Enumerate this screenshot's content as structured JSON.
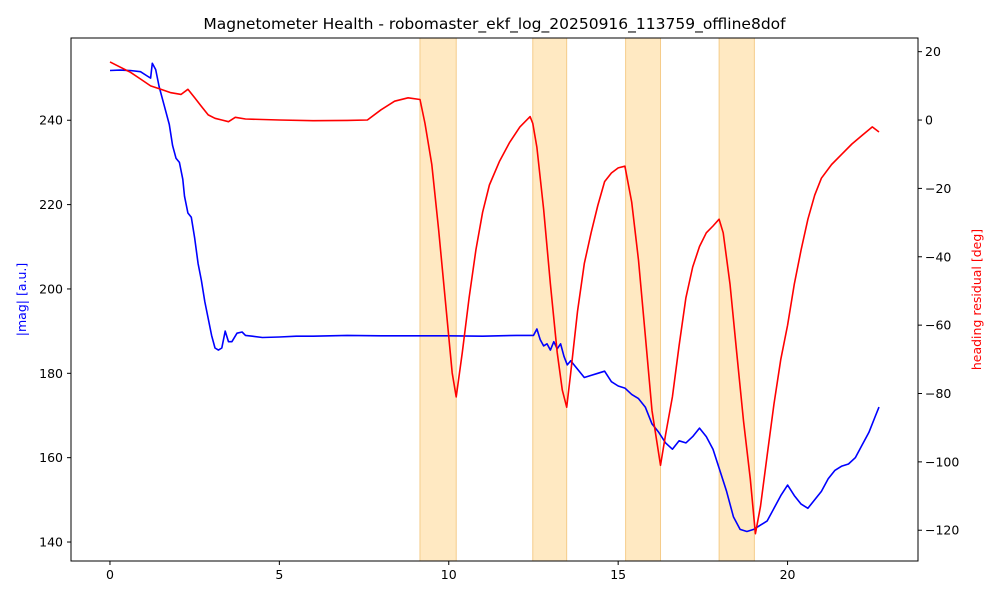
{
  "chart_data": {
    "type": "line",
    "title": "Magnetometer Health - robomaster_ekf_log_20250916_113759_offline8dof",
    "xlabel": "",
    "ylabel_left": "|mag| [a.u.]",
    "ylabel_right": "heading residual [deg]",
    "xlim": [
      -1.15,
      23.85
    ],
    "ylim_left": [
      135.5,
      259.5
    ],
    "ylim_right": [
      -129,
      24
    ],
    "x_ticks": [
      0,
      5,
      10,
      15,
      20
    ],
    "y_ticks_left": [
      140,
      160,
      180,
      200,
      220,
      240
    ],
    "y_ticks_right": [
      20,
      0,
      -20,
      -40,
      -60,
      -80,
      -100,
      -120
    ],
    "grid": false,
    "shaded_intervals": [
      [
        9.15,
        10.22
      ],
      [
        12.48,
        13.48
      ],
      [
        15.22,
        16.25
      ],
      [
        17.98,
        19.02
      ]
    ],
    "colors": {
      "left_series": "#0000ff",
      "right_series": "#ff0000",
      "shade": "#ffe9c2",
      "shade_edge": "#f5cc8a"
    },
    "series": [
      {
        "axis": "left",
        "color": "#0000ff",
        "points": [
          [
            0,
            251.8
          ],
          [
            0.3,
            251.9
          ],
          [
            0.6,
            251.8
          ],
          [
            0.9,
            251.5
          ],
          [
            1.1,
            250.5
          ],
          [
            1.2,
            250
          ],
          [
            1.25,
            253.5
          ],
          [
            1.35,
            252
          ],
          [
            1.45,
            248
          ],
          [
            1.55,
            245
          ],
          [
            1.65,
            242
          ],
          [
            1.75,
            239
          ],
          [
            1.85,
            234
          ],
          [
            1.95,
            231
          ],
          [
            2.05,
            230
          ],
          [
            2.15,
            226
          ],
          [
            2.2,
            222
          ],
          [
            2.3,
            218
          ],
          [
            2.4,
            217
          ],
          [
            2.5,
            212
          ],
          [
            2.6,
            206
          ],
          [
            2.7,
            202
          ],
          [
            2.8,
            197
          ],
          [
            2.9,
            193
          ],
          [
            3.0,
            189
          ],
          [
            3.1,
            186
          ],
          [
            3.2,
            185.5
          ],
          [
            3.3,
            186
          ],
          [
            3.4,
            190
          ],
          [
            3.5,
            187.5
          ],
          [
            3.6,
            187.5
          ],
          [
            3.75,
            189.5
          ],
          [
            3.9,
            189.8
          ],
          [
            4.0,
            189
          ],
          [
            4.2,
            188.8
          ],
          [
            4.5,
            188.5
          ],
          [
            5.0,
            188.6
          ],
          [
            5.5,
            188.8
          ],
          [
            6,
            188.8
          ],
          [
            7,
            189
          ],
          [
            8,
            188.9
          ],
          [
            9,
            188.9
          ],
          [
            10,
            188.9
          ],
          [
            11,
            188.8
          ],
          [
            12,
            189
          ],
          [
            12.5,
            189
          ],
          [
            12.6,
            190.5
          ],
          [
            12.7,
            188
          ],
          [
            12.8,
            186.5
          ],
          [
            12.9,
            187
          ],
          [
            13.0,
            185.5
          ],
          [
            13.1,
            187.5
          ],
          [
            13.2,
            185.8
          ],
          [
            13.3,
            187
          ],
          [
            13.4,
            184
          ],
          [
            13.5,
            182
          ],
          [
            13.6,
            183
          ],
          [
            13.8,
            181
          ],
          [
            14.0,
            179
          ],
          [
            14.2,
            179.5
          ],
          [
            14.4,
            180
          ],
          [
            14.6,
            180.5
          ],
          [
            14.8,
            178
          ],
          [
            15.0,
            177
          ],
          [
            15.2,
            176.5
          ],
          [
            15.4,
            175
          ],
          [
            15.6,
            174
          ],
          [
            15.8,
            172
          ],
          [
            16.0,
            168
          ],
          [
            16.2,
            166
          ],
          [
            16.4,
            163.5
          ],
          [
            16.6,
            162
          ],
          [
            16.8,
            164
          ],
          [
            17.0,
            163.5
          ],
          [
            17.2,
            165
          ],
          [
            17.4,
            167
          ],
          [
            17.6,
            165
          ],
          [
            17.8,
            162
          ],
          [
            18.0,
            157
          ],
          [
            18.2,
            152
          ],
          [
            18.4,
            146
          ],
          [
            18.6,
            143
          ],
          [
            18.8,
            142.5
          ],
          [
            19.0,
            143
          ],
          [
            19.2,
            144
          ],
          [
            19.4,
            145
          ],
          [
            19.6,
            148
          ],
          [
            19.8,
            151
          ],
          [
            20.0,
            153.5
          ],
          [
            20.2,
            151
          ],
          [
            20.4,
            149
          ],
          [
            20.6,
            148
          ],
          [
            20.8,
            150
          ],
          [
            21.0,
            152
          ],
          [
            21.2,
            155
          ],
          [
            21.4,
            157
          ],
          [
            21.6,
            158
          ],
          [
            21.8,
            158.5
          ],
          [
            22.0,
            160
          ],
          [
            22.2,
            163
          ],
          [
            22.4,
            166
          ],
          [
            22.6,
            170
          ],
          [
            22.7,
            172
          ]
        ]
      },
      {
        "axis": "right",
        "color": "#ff0000",
        "points": [
          [
            0,
            17
          ],
          [
            0.3,
            15.5
          ],
          [
            0.6,
            14
          ],
          [
            0.9,
            12
          ],
          [
            1.2,
            10
          ],
          [
            1.5,
            9
          ],
          [
            1.8,
            8
          ],
          [
            2.1,
            7.5
          ],
          [
            2.3,
            9
          ],
          [
            2.5,
            6.5
          ],
          [
            2.7,
            4
          ],
          [
            2.9,
            1.5
          ],
          [
            3.1,
            0.5
          ],
          [
            3.3,
            0
          ],
          [
            3.5,
            -0.5
          ],
          [
            3.7,
            0.8
          ],
          [
            4,
            0.3
          ],
          [
            5,
            0
          ],
          [
            6,
            -0.2
          ],
          [
            7,
            -0.1
          ],
          [
            7.6,
            0
          ],
          [
            8.0,
            3
          ],
          [
            8.4,
            5.5
          ],
          [
            8.8,
            6.5
          ],
          [
            9.15,
            6
          ],
          [
            9.3,
            -1
          ],
          [
            9.5,
            -13
          ],
          [
            9.7,
            -32
          ],
          [
            9.9,
            -53
          ],
          [
            10.1,
            -74
          ],
          [
            10.22,
            -81
          ],
          [
            10.4,
            -68
          ],
          [
            10.6,
            -52
          ],
          [
            10.8,
            -38
          ],
          [
            11.0,
            -27
          ],
          [
            11.2,
            -19
          ],
          [
            11.5,
            -12
          ],
          [
            11.8,
            -6.5
          ],
          [
            12.1,
            -2
          ],
          [
            12.4,
            1
          ],
          [
            12.48,
            -1
          ],
          [
            12.6,
            -8
          ],
          [
            12.8,
            -26
          ],
          [
            13.0,
            -48
          ],
          [
            13.2,
            -68
          ],
          [
            13.35,
            -79
          ],
          [
            13.48,
            -84
          ],
          [
            13.6,
            -74
          ],
          [
            13.8,
            -56
          ],
          [
            14.0,
            -42
          ],
          [
            14.2,
            -33
          ],
          [
            14.4,
            -25
          ],
          [
            14.6,
            -18
          ],
          [
            14.8,
            -15.5
          ],
          [
            15.0,
            -14
          ],
          [
            15.2,
            -13.5
          ],
          [
            15.4,
            -24
          ],
          [
            15.6,
            -41
          ],
          [
            15.8,
            -63
          ],
          [
            16.0,
            -85
          ],
          [
            16.25,
            -101
          ],
          [
            16.4,
            -92
          ],
          [
            16.6,
            -81
          ],
          [
            16.8,
            -66
          ],
          [
            17.0,
            -52
          ],
          [
            17.2,
            -43
          ],
          [
            17.4,
            -37
          ],
          [
            17.6,
            -33
          ],
          [
            17.8,
            -31
          ],
          [
            17.98,
            -29
          ],
          [
            18.1,
            -33
          ],
          [
            18.3,
            -48
          ],
          [
            18.5,
            -68
          ],
          [
            18.7,
            -88
          ],
          [
            18.9,
            -105
          ],
          [
            19.05,
            -121
          ],
          [
            19.2,
            -113
          ],
          [
            19.4,
            -98
          ],
          [
            19.6,
            -83
          ],
          [
            19.8,
            -70
          ],
          [
            20.0,
            -60
          ],
          [
            20.2,
            -48
          ],
          [
            20.4,
            -38
          ],
          [
            20.6,
            -29
          ],
          [
            20.8,
            -22
          ],
          [
            21.0,
            -17
          ],
          [
            21.3,
            -13
          ],
          [
            21.6,
            -10
          ],
          [
            21.9,
            -7
          ],
          [
            22.2,
            -4.5
          ],
          [
            22.5,
            -2
          ],
          [
            22.7,
            -3.5
          ]
        ]
      }
    ]
  }
}
